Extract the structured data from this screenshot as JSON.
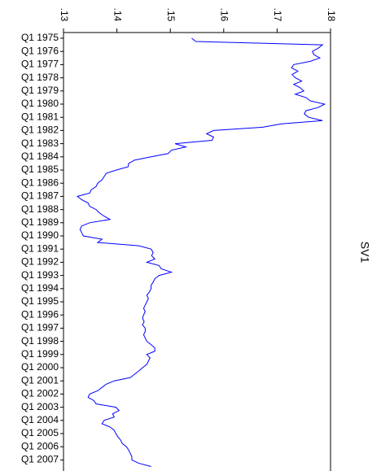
{
  "chart_data": {
    "type": "line",
    "title": "SV1",
    "categories": [
      "Q1 1975",
      null,
      null,
      null,
      "Q1 1976",
      null,
      null,
      null,
      "Q1 1977",
      null,
      null,
      null,
      "Q1 1978",
      null,
      null,
      null,
      "Q1 1979",
      null,
      null,
      null,
      "Q1 1980",
      null,
      null,
      null,
      "Q1 1981",
      null,
      null,
      null,
      "Q1 1982",
      null,
      null,
      null,
      "Q1 1983",
      null,
      null,
      null,
      "Q1 1984",
      null,
      null,
      null,
      "Q1 1985",
      null,
      null,
      null,
      "Q1 1986",
      null,
      null,
      null,
      "Q1 1987",
      null,
      null,
      null,
      "Q1 1988",
      null,
      null,
      null,
      "Q1 1989",
      null,
      null,
      null,
      "Q1 1990",
      null,
      null,
      null,
      "Q1 1991",
      null,
      null,
      null,
      "Q1 1992",
      null,
      null,
      null,
      "Q1 1993",
      null,
      null,
      null,
      "Q1 1994",
      null,
      null,
      null,
      "Q1 1995",
      null,
      null,
      null,
      "Q1 1996",
      null,
      null,
      null,
      "Q1 1997",
      null,
      null,
      null,
      "Q1 1998",
      null,
      null,
      null,
      "Q1 1999",
      null,
      null,
      null,
      "Q1 2000",
      null,
      null,
      null,
      "Q1 2001",
      null,
      null,
      null,
      "Q1 2002",
      null,
      null,
      null,
      "Q1 2003",
      null,
      null,
      null,
      "Q1 2004",
      null,
      null,
      null,
      "Q1 2005",
      null,
      null,
      null,
      "Q1 2006",
      null,
      null,
      null,
      "Q1 2007",
      null,
      null
    ],
    "series": [
      {
        "name": "SV1",
        "color": "#0000ff",
        "values": [
          0.154,
          0.1548,
          0.1785,
          0.1777,
          0.1766,
          0.1769,
          0.178,
          0.1762,
          0.1731,
          0.1727,
          0.1739,
          0.1728,
          0.1734,
          0.1746,
          0.1731,
          0.1743,
          0.175,
          0.1734,
          0.1754,
          0.1762,
          0.1789,
          0.1777,
          0.1754,
          0.1751,
          0.1759,
          0.1785,
          0.1708,
          0.1673,
          0.1581,
          0.1568,
          0.1581,
          0.1578,
          0.1509,
          0.1529,
          0.1502,
          0.1496,
          0.1464,
          0.1433,
          0.1422,
          0.1421,
          0.1399,
          0.138,
          0.1376,
          0.1372,
          0.1364,
          0.1361,
          0.1352,
          0.1349,
          0.1326,
          0.1334,
          0.1346,
          0.1349,
          0.1361,
          0.1367,
          0.1376,
          0.1387,
          0.1349,
          0.1334,
          0.1331,
          0.1334,
          0.1337,
          0.1372,
          0.1364,
          0.1441,
          0.1464,
          0.1468,
          0.1465,
          0.1471,
          0.1456,
          0.1479,
          0.1483,
          0.1502,
          0.1479,
          0.1471,
          0.1468,
          0.1464,
          0.1464,
          0.1461,
          0.1456,
          0.1459,
          0.1456,
          0.1453,
          0.145,
          0.1453,
          0.145,
          0.1448,
          0.1451,
          0.1448,
          0.1453,
          0.1453,
          0.145,
          0.1453,
          0.1456,
          0.1464,
          0.1471,
          0.1471,
          0.1456,
          0.1462,
          0.1459,
          0.1456,
          0.1448,
          0.1441,
          0.1433,
          0.1425,
          0.1395,
          0.138,
          0.1372,
          0.1364,
          0.1349,
          0.1346,
          0.1357,
          0.1361,
          0.1398,
          0.1404,
          0.1392,
          0.1395,
          0.1376,
          0.1372,
          0.1387,
          0.1395,
          0.1398,
          0.1402,
          0.1407,
          0.141,
          0.1418,
          0.1422,
          0.1425,
          0.1428,
          0.1428,
          0.1441,
          0.1464
        ]
      }
    ],
    "xlim": [
      0.13,
      0.18
    ],
    "xticks": [
      {
        "value": 0.13,
        "label": ".13"
      },
      {
        "value": 0.14,
        "label": ".14"
      },
      {
        "value": 0.15,
        "label": ".15"
      },
      {
        "value": 0.16,
        "label": ".16"
      },
      {
        "value": 0.17,
        "label": ".17"
      },
      {
        "value": 0.18,
        "label": ".18"
      }
    ]
  }
}
